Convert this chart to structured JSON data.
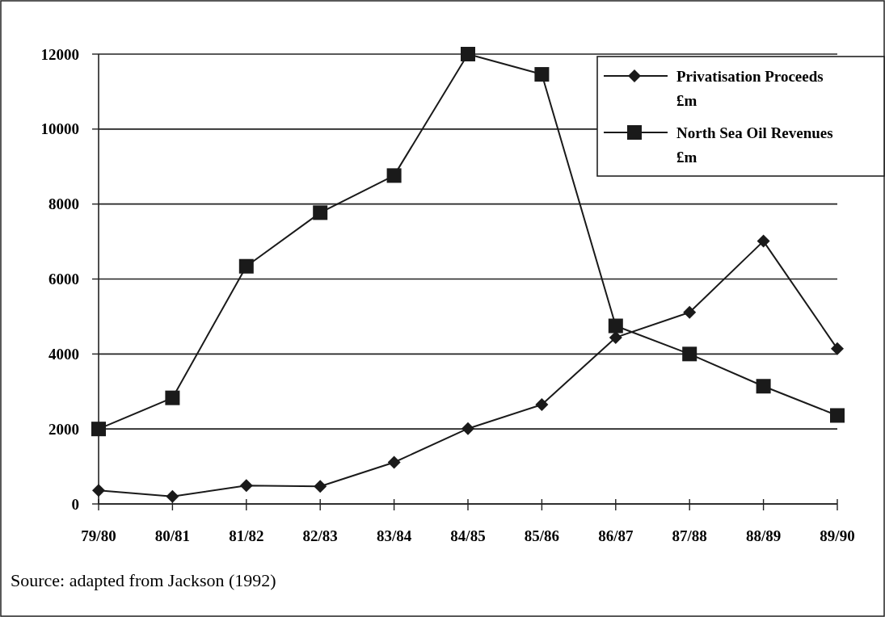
{
  "chart_data": {
    "type": "line",
    "categories": [
      "79/80",
      "80/81",
      "81/82",
      "82/83",
      "83/84",
      "84/85",
      "85/86",
      "86/87",
      "87/88",
      "88/89",
      "89/90"
    ],
    "series": [
      {
        "name": "Privatisation Proceeds £m",
        "color": "#1a1a1a",
        "marker": "diamond",
        "values": [
          360,
          200,
          490,
          470,
          1110,
          2010,
          2650,
          4440,
          5110,
          7010,
          4140
        ]
      },
      {
        "name": "North Sea Oil Revenues £m",
        "color": "#1a1a1a",
        "marker": "square",
        "values": [
          2000,
          2830,
          6340,
          7770,
          8760,
          12000,
          11460,
          4750,
          4000,
          3140,
          2360
        ]
      }
    ],
    "ylim": [
      0,
      12000
    ],
    "yticks": [
      0,
      2000,
      4000,
      6000,
      8000,
      10000,
      12000
    ],
    "grid": "y",
    "legend": "top right",
    "annotations": [
      "Source: adapted from Jackson (1992)"
    ]
  }
}
